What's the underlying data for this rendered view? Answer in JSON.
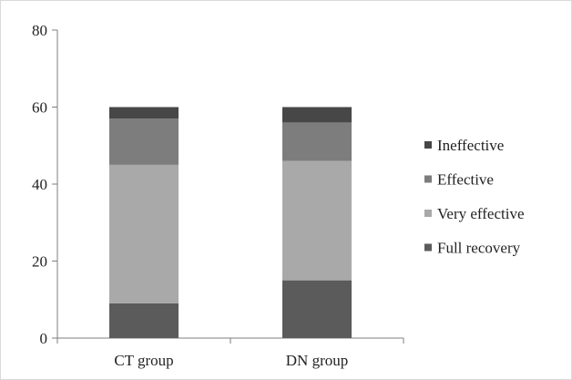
{
  "chart_data": {
    "type": "bar",
    "stacked": true,
    "categories": [
      "CT group",
      "DN group"
    ],
    "series": [
      {
        "name": "Full recovery",
        "values": [
          9,
          15
        ],
        "color": "#5b5b5b"
      },
      {
        "name": "Very effective",
        "values": [
          36,
          31
        ],
        "color": "#a9a9a9"
      },
      {
        "name": "Effective",
        "values": [
          12,
          10
        ],
        "color": "#7d7d7d"
      },
      {
        "name": "Ineffective",
        "values": [
          3,
          4
        ],
        "color": "#474747"
      }
    ],
    "ylim": [
      0,
      80
    ],
    "yticks": [
      "0",
      "20",
      "40",
      "60",
      "80"
    ],
    "title": "",
    "xlabel": "",
    "ylabel": "",
    "grid": false,
    "legend": "right"
  }
}
